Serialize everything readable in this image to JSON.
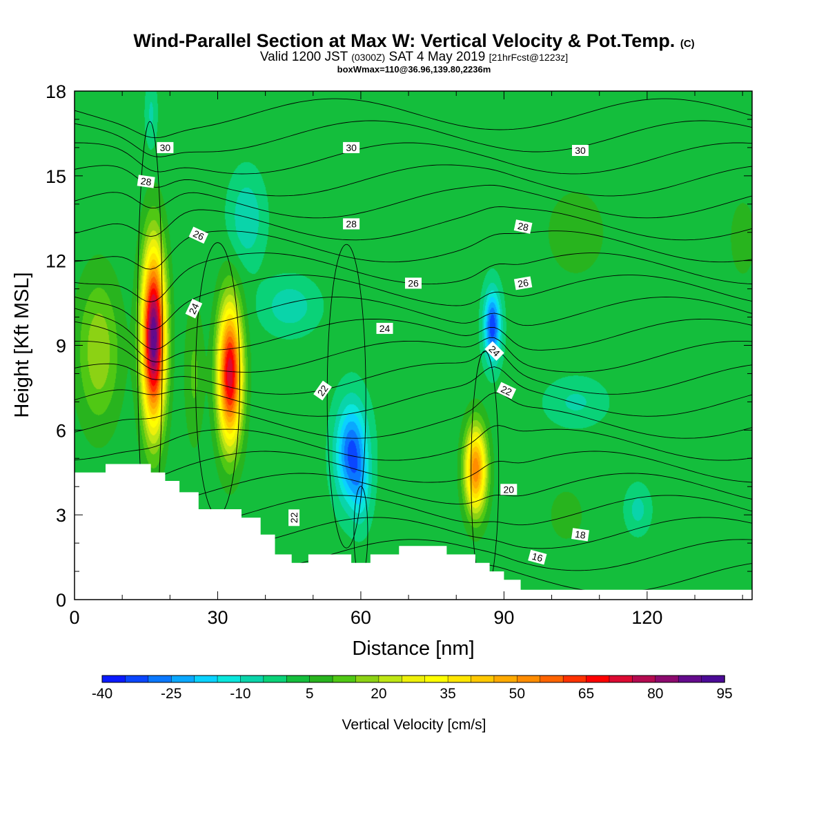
{
  "header": {
    "title_main": "Wind-Parallel Section at Max W: Vertical Velocity & Pot.Temp.",
    "title_mark": "(C)",
    "valid_a": "Valid 1200 JST",
    "valid_b": "(0300Z)",
    "valid_c": "SAT 4 May 2019",
    "valid_d": "[21hrFcst@1223z]",
    "box_info": "boxWmax=110@36.96,139.80,2236m"
  },
  "chart_data": {
    "type": "heatmap",
    "title": "Wind-Parallel Section at Max W: Vertical Velocity & Pot.Temp.",
    "xlabel": "Distance [nm]",
    "ylabel": "Height [Kft MSL]",
    "xlim": [
      0,
      142
    ],
    "ylim": [
      0,
      18
    ],
    "x_ticks": [
      "0",
      "30",
      "60",
      "90",
      "120"
    ],
    "x_tick_values": [
      0,
      30,
      60,
      90,
      120
    ],
    "y_ticks": [
      "0",
      "3",
      "6",
      "9",
      "12",
      "15",
      "18"
    ],
    "y_tick_values": [
      0,
      3,
      6,
      9,
      12,
      15,
      18
    ],
    "colorbar": {
      "label": "Vertical Velocity [cm/s]",
      "min": -40,
      "max": 95,
      "step": 5,
      "tick_labels": [
        "-40",
        "-25",
        "-10",
        "5",
        "20",
        "35",
        "50",
        "65",
        "80",
        "95"
      ],
      "colors": [
        "#0a1aff",
        "#0a46ff",
        "#0a78ff",
        "#0aa8ff",
        "#0ad2ff",
        "#0ae6dc",
        "#0ad4aa",
        "#0ad278",
        "#14be3c",
        "#28b41e",
        "#50c814",
        "#8cd214",
        "#bee614",
        "#eef00a",
        "#ffff00",
        "#ffe600",
        "#ffc800",
        "#ffaa00",
        "#ff8c00",
        "#ff6400",
        "#ff3200",
        "#ff0000",
        "#dc0a32",
        "#b40a50",
        "#8c0a6e",
        "#640a8c",
        "#4b0a96"
      ]
    },
    "background_w": 2,
    "w_features": [
      {
        "x": 5,
        "y": 8.8,
        "sx": 4.5,
        "sy": 2.6,
        "amp": 17
      },
      {
        "x": 16.5,
        "y": 9.3,
        "sx": 2.4,
        "sy": 3.0,
        "amp": 88
      },
      {
        "x": 32.5,
        "y": 8.0,
        "sx": 2.5,
        "sy": 2.4,
        "amp": 72
      },
      {
        "x": 25,
        "y": 8.0,
        "sx": 2.0,
        "sy": 2.5,
        "amp": 9
      },
      {
        "x": 58,
        "y": 5.2,
        "sx": 3.2,
        "sy": 1.7,
        "amp": -34
      },
      {
        "x": 60,
        "y": 3.8,
        "sx": 2.0,
        "sy": 1.2,
        "amp": -10
      },
      {
        "x": 84,
        "y": 4.6,
        "sx": 2.3,
        "sy": 1.5,
        "amp": 52
      },
      {
        "x": 87.5,
        "y": 9.7,
        "sx": 1.7,
        "sy": 1.2,
        "amp": -36
      },
      {
        "x": 45,
        "y": 10.4,
        "sx": 5.5,
        "sy": 0.9,
        "amp": -11
      },
      {
        "x": 36,
        "y": 13.5,
        "sx": 3.5,
        "sy": 1.5,
        "amp": -12
      },
      {
        "x": 105,
        "y": 7.0,
        "sx": 6.0,
        "sy": 0.8,
        "amp": -8
      },
      {
        "x": 103,
        "y": 3.0,
        "sx": 3.5,
        "sy": 0.9,
        "amp": 7
      },
      {
        "x": 118,
        "y": 3.2,
        "sx": 2.5,
        "sy": 0.8,
        "amp": -9
      },
      {
        "x": 105,
        "y": 13.0,
        "sx": 8.0,
        "sy": 2.0,
        "amp": 5
      },
      {
        "x": 16,
        "y": 17.2,
        "sx": 1.2,
        "sy": 1.2,
        "amp": -8
      },
      {
        "x": 140,
        "y": 12.8,
        "sx": 3.0,
        "sy": 1.5,
        "amp": 6
      }
    ],
    "terrain": [
      [
        0,
        4.5
      ],
      [
        6.5,
        4.5
      ],
      [
        6.5,
        4.8
      ],
      [
        16,
        4.8
      ],
      [
        16,
        4.5
      ],
      [
        19,
        4.5
      ],
      [
        19,
        4.2
      ],
      [
        22,
        4.2
      ],
      [
        22,
        3.8
      ],
      [
        26,
        3.8
      ],
      [
        26,
        3.2
      ],
      [
        35,
        3.2
      ],
      [
        35,
        2.9
      ],
      [
        39,
        2.9
      ],
      [
        39,
        2.3
      ],
      [
        42,
        2.3
      ],
      [
        42,
        1.6
      ],
      [
        45.5,
        1.6
      ],
      [
        45.5,
        1.3
      ],
      [
        49,
        1.3
      ],
      [
        49,
        1.6
      ],
      [
        58,
        1.6
      ],
      [
        58,
        1.3
      ],
      [
        62,
        1.3
      ],
      [
        62,
        1.6
      ],
      [
        68,
        1.6
      ],
      [
        68,
        1.9
      ],
      [
        78,
        1.9
      ],
      [
        78,
        1.6
      ],
      [
        84,
        1.6
      ],
      [
        84,
        1.3
      ],
      [
        87,
        1.3
      ],
      [
        87,
        1.0
      ],
      [
        90,
        1.0
      ],
      [
        90,
        0.7
      ],
      [
        93.5,
        0.7
      ],
      [
        93.5,
        0.35
      ],
      [
        142,
        0.35
      ]
    ],
    "theta_contour_labels": [
      {
        "value": "30",
        "x": 19,
        "y": 16.0,
        "angle": 0
      },
      {
        "value": "30",
        "x": 58,
        "y": 16.0,
        "angle": 0
      },
      {
        "value": "30",
        "x": 106,
        "y": 15.9,
        "angle": 0
      },
      {
        "value": "28",
        "x": 15,
        "y": 14.8,
        "angle": 8
      },
      {
        "value": "28",
        "x": 58,
        "y": 13.3,
        "angle": 0
      },
      {
        "value": "28",
        "x": 94,
        "y": 13.2,
        "angle": 12
      },
      {
        "value": "26",
        "x": 26,
        "y": 12.9,
        "angle": 25
      },
      {
        "value": "26",
        "x": 71,
        "y": 11.2,
        "angle": 0
      },
      {
        "value": "26",
        "x": 94,
        "y": 11.2,
        "angle": -10
      },
      {
        "value": "24",
        "x": 25,
        "y": 10.3,
        "angle": -65
      },
      {
        "value": "24",
        "x": 65,
        "y": 9.6,
        "angle": 0
      },
      {
        "value": "24",
        "x": 88,
        "y": 8.8,
        "angle": 45
      },
      {
        "value": "22",
        "x": 52,
        "y": 7.4,
        "angle": -55
      },
      {
        "value": "22",
        "x": 90.5,
        "y": 7.4,
        "angle": 25
      },
      {
        "value": "22",
        "x": 46,
        "y": 2.9,
        "angle": -90
      },
      {
        "value": "20",
        "x": 91,
        "y": 3.9,
        "angle": 0
      },
      {
        "value": "18",
        "x": 106,
        "y": 2.3,
        "angle": 8
      },
      {
        "value": "16",
        "x": 97,
        "y": 1.5,
        "angle": 15
      }
    ]
  }
}
